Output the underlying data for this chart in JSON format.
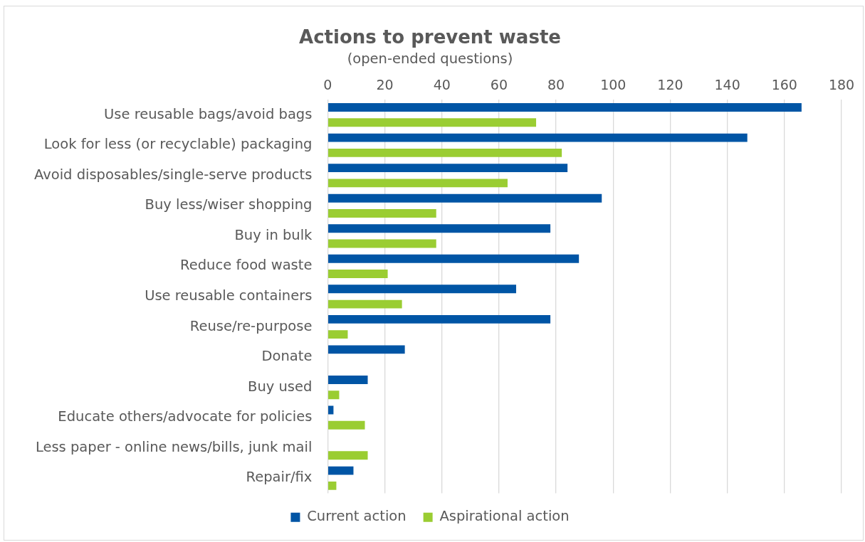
{
  "chart_data": {
    "type": "bar",
    "orientation": "horizontal",
    "title": "Actions to prevent waste",
    "subtitle": "(open-ended questions)",
    "categories": [
      "Use reusable bags/avoid bags",
      "Look for less (or recyclable) packaging",
      "Avoid disposables/single-serve products",
      "Buy less/wiser shopping",
      "Buy in bulk",
      "Reduce food waste",
      "Use reusable containers",
      "Reuse/re-purpose",
      "Donate",
      "Buy used",
      "Educate others/advocate for policies",
      "Less paper - online news/bills, junk mail",
      "Repair/fix"
    ],
    "series": [
      {
        "name": "Current action",
        "color": "#0055a5",
        "values": [
          166,
          147,
          84,
          96,
          78,
          88,
          66,
          78,
          27,
          14,
          2,
          0,
          9
        ]
      },
      {
        "name": "Aspirational action",
        "color": "#9acd32",
        "values": [
          73,
          82,
          63,
          38,
          38,
          21,
          26,
          7,
          0,
          4,
          13,
          14,
          3
        ]
      }
    ],
    "xlim": [
      0,
      180
    ],
    "xticks": [
      0,
      20,
      40,
      60,
      80,
      100,
      120,
      140,
      160,
      180
    ],
    "grid": "x",
    "legend": "bottom"
  }
}
